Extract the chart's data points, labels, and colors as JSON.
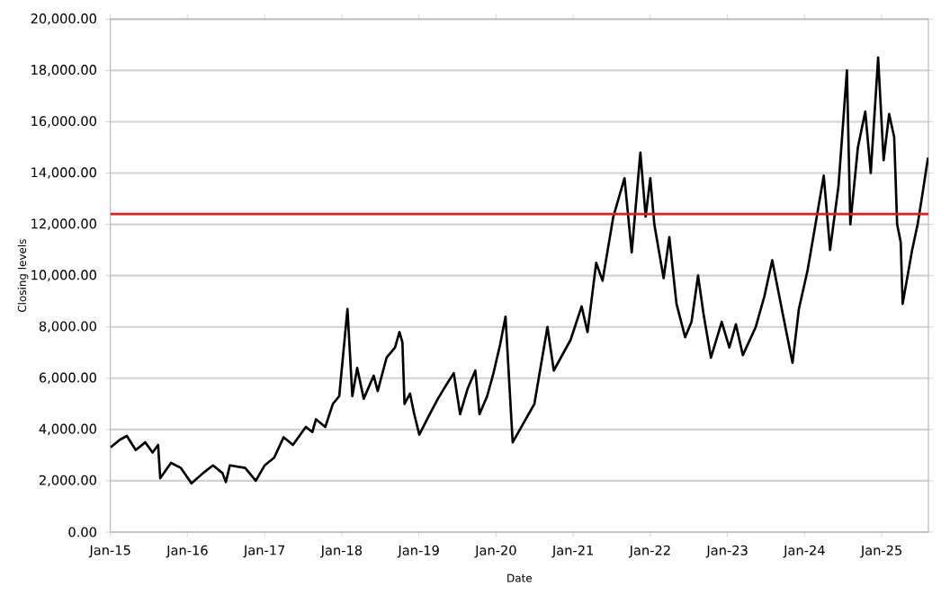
{
  "chart_data": {
    "type": "line",
    "xlabel": "Date",
    "ylabel": "Closing levels",
    "grid": "y",
    "marker": "none",
    "line_style": "solid",
    "xlim": [
      "2015-01-01",
      "2025-08-10"
    ],
    "ylim": [
      0,
      20000
    ],
    "xticks": [
      {
        "value": "2015-01-01",
        "label": "Jan-15"
      },
      {
        "value": "2016-01-01",
        "label": "Jan-16"
      },
      {
        "value": "2017-01-01",
        "label": "Jan-17"
      },
      {
        "value": "2018-01-01",
        "label": "Jan-18"
      },
      {
        "value": "2019-01-01",
        "label": "Jan-19"
      },
      {
        "value": "2020-01-01",
        "label": "Jan-20"
      },
      {
        "value": "2021-01-01",
        "label": "Jan-21"
      },
      {
        "value": "2022-01-01",
        "label": "Jan-22"
      },
      {
        "value": "2023-01-01",
        "label": "Jan-23"
      },
      {
        "value": "2024-01-01",
        "label": "Jan-24"
      },
      {
        "value": "2025-01-01",
        "label": "Jan-25"
      }
    ],
    "yticks": [
      {
        "value": 0,
        "label": "0.00"
      },
      {
        "value": 2000,
        "label": "2,000.00"
      },
      {
        "value": 4000,
        "label": "4,000.00"
      },
      {
        "value": 6000,
        "label": "6,000.00"
      },
      {
        "value": 8000,
        "label": "8,000.00"
      },
      {
        "value": 10000,
        "label": "10,000.00"
      },
      {
        "value": 12000,
        "label": "12,000.00"
      },
      {
        "value": 14000,
        "label": "14,000.00"
      },
      {
        "value": 16000,
        "label": "16,000.00"
      },
      {
        "value": 18000,
        "label": "18,000.00"
      },
      {
        "value": 20000,
        "label": "20,000.00"
      }
    ],
    "ref_lines": [
      {
        "axis": "y",
        "value": 12400,
        "color": "#e02020"
      }
    ],
    "series": [
      {
        "color": "#000000",
        "x": [
          "2015-01-02",
          "2015-02-15",
          "2015-03-20",
          "2015-05-01",
          "2015-06-15",
          "2015-07-20",
          "2015-08-15",
          "2015-08-25",
          "2015-10-15",
          "2015-12-01",
          "2016-01-20",
          "2016-03-15",
          "2016-05-01",
          "2016-06-15",
          "2016-07-01",
          "2016-07-20",
          "2016-10-01",
          "2016-11-20",
          "2017-01-01",
          "2017-02-15",
          "2017-04-01",
          "2017-05-15",
          "2017-07-15",
          "2017-08-15",
          "2017-09-01",
          "2017-10-15",
          "2017-11-20",
          "2017-12-20",
          "2018-01-28",
          "2018-02-20",
          "2018-03-15",
          "2018-04-15",
          "2018-06-01",
          "2018-06-20",
          "2018-08-01",
          "2018-09-10",
          "2018-10-01",
          "2018-10-15",
          "2018-10-25",
          "2018-11-20",
          "2018-12-10",
          "2019-01-03",
          "2019-02-15",
          "2019-04-01",
          "2019-05-15",
          "2019-06-15",
          "2019-07-15",
          "2019-08-20",
          "2019-09-25",
          "2019-10-15",
          "2019-11-20",
          "2019-12-20",
          "2020-01-20",
          "2020-02-15",
          "2020-03-20",
          "2020-07-01",
          "2020-09-01",
          "2020-10-01",
          "2020-12-20",
          "2021-02-10",
          "2021-03-10",
          "2021-04-20",
          "2021-05-20",
          "2021-07-10",
          "2021-09-01",
          "2021-10-05",
          "2021-11-15",
          "2021-12-10",
          "2022-01-01",
          "2022-01-20",
          "2022-03-05",
          "2022-04-01",
          "2022-05-05",
          "2022-06-15",
          "2022-07-15",
          "2022-08-15",
          "2022-09-10",
          "2022-10-15",
          "2022-12-05",
          "2023-01-10",
          "2023-02-10",
          "2023-03-15",
          "2023-05-15",
          "2023-06-25",
          "2023-08-01",
          "2023-09-20",
          "2023-11-05",
          "2023-12-05",
          "2024-01-15",
          "2024-02-28",
          "2024-04-01",
          "2024-05-01",
          "2024-06-10",
          "2024-07-20",
          "2024-08-05",
          "2024-09-10",
          "2024-10-15",
          "2024-11-10",
          "2024-12-15",
          "2025-01-10",
          "2025-02-05",
          "2025-03-01",
          "2025-03-15",
          "2025-04-01",
          "2025-04-10",
          "2025-05-25",
          "2025-06-20",
          "2025-07-15",
          "2025-08-08"
        ],
        "values": [
          3300,
          3600,
          3750,
          3200,
          3500,
          3100,
          3400,
          2100,
          2700,
          2500,
          1900,
          2300,
          2600,
          2300,
          1950,
          2600,
          2500,
          2000,
          2600,
          2900,
          3700,
          3400,
          4100,
          3900,
          4400,
          4100,
          5000,
          5300,
          8700,
          5300,
          6400,
          5200,
          6100,
          5500,
          6800,
          7200,
          7800,
          7400,
          5000,
          5400,
          4600,
          3800,
          4500,
          5200,
          5800,
          6200,
          4600,
          5600,
          6300,
          4600,
          5300,
          6200,
          7300,
          8400,
          3500,
          5000,
          8000,
          6300,
          7500,
          8800,
          7800,
          10500,
          9800,
          12300,
          13800,
          10900,
          14800,
          12300,
          13800,
          12000,
          9900,
          11500,
          8900,
          7600,
          8200,
          10000,
          8500,
          6800,
          8200,
          7200,
          8100,
          6900,
          8000,
          9200,
          10600,
          8500,
          6600,
          8700,
          10200,
          12300,
          13900,
          11000,
          13500,
          18000,
          12000,
          15000,
          16400,
          14000,
          18500,
          14500,
          16300,
          15400,
          12000,
          11300,
          8900,
          11000,
          12000,
          13300,
          14600
        ]
      }
    ]
  }
}
